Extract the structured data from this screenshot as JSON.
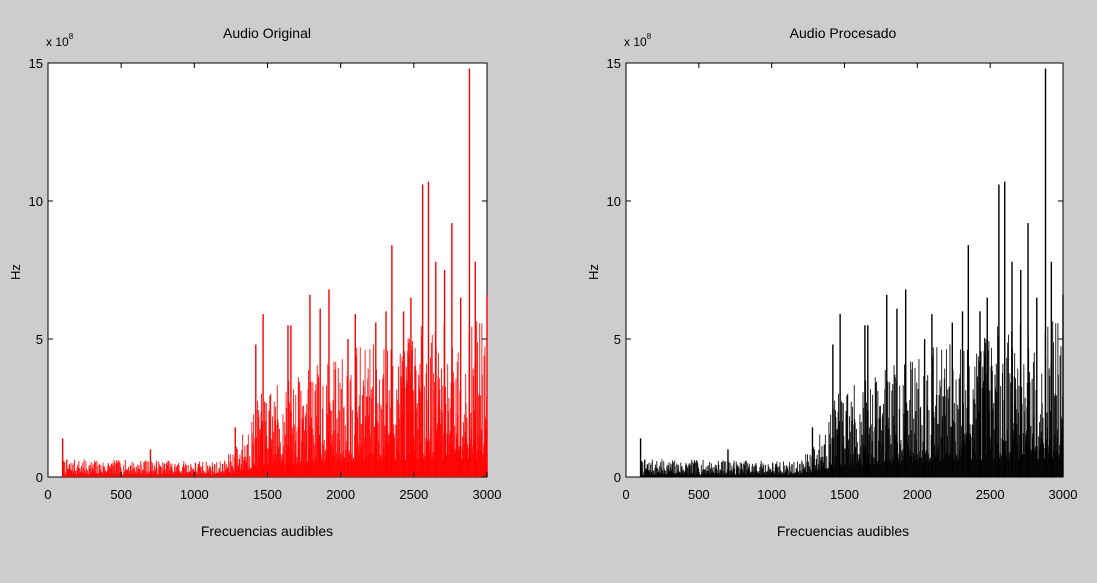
{
  "figure": {
    "background": "#cdcdcd"
  },
  "chart_data": [
    {
      "type": "bar",
      "title": "Audio Original",
      "xlabel": "Frecuencias audibles",
      "ylabel": "Hz",
      "exponent_label": "x 10",
      "exponent_power": "8",
      "xlim": [
        0,
        3000
      ],
      "ylim": [
        0,
        15
      ],
      "xticks": [
        "0",
        "500",
        "1000",
        "1500",
        "2000",
        "2500",
        "3000"
      ],
      "yticks": [
        "0",
        "5",
        "10",
        "15"
      ],
      "color": "#ff0000",
      "grid": false,
      "data_start": 100,
      "data_end": 3000,
      "noise_seed": 7,
      "envelope": [
        [
          100,
          0.5
        ],
        [
          1200,
          0.45
        ],
        [
          1300,
          1.0
        ],
        [
          1450,
          2.3
        ],
        [
          1750,
          3.0
        ],
        [
          2100,
          3.6
        ],
        [
          2500,
          4.2
        ],
        [
          3000,
          4.4
        ]
      ],
      "peaks": [
        {
          "x": 100,
          "y": 1.4
        },
        {
          "x": 700,
          "y": 1.0
        },
        {
          "x": 1280,
          "y": 1.8
        },
        {
          "x": 1420,
          "y": 4.8
        },
        {
          "x": 1470,
          "y": 5.9
        },
        {
          "x": 1640,
          "y": 5.5
        },
        {
          "x": 1660,
          "y": 5.5
        },
        {
          "x": 1790,
          "y": 6.6
        },
        {
          "x": 1860,
          "y": 6.1
        },
        {
          "x": 1920,
          "y": 6.8
        },
        {
          "x": 2050,
          "y": 5.0
        },
        {
          "x": 2100,
          "y": 5.9
        },
        {
          "x": 2240,
          "y": 5.6
        },
        {
          "x": 2310,
          "y": 6.0
        },
        {
          "x": 2350,
          "y": 8.4
        },
        {
          "x": 2430,
          "y": 6.0
        },
        {
          "x": 2480,
          "y": 6.5
        },
        {
          "x": 2560,
          "y": 10.6
        },
        {
          "x": 2600,
          "y": 10.7
        },
        {
          "x": 2650,
          "y": 7.8
        },
        {
          "x": 2710,
          "y": 7.5
        },
        {
          "x": 2760,
          "y": 9.2
        },
        {
          "x": 2820,
          "y": 6.5
        },
        {
          "x": 2880,
          "y": 14.8
        },
        {
          "x": 2920,
          "y": 7.8
        },
        {
          "x": 3000,
          "y": 6.6
        }
      ]
    },
    {
      "type": "bar",
      "title": "Audio Procesado",
      "xlabel": "Frecuencias audibles",
      "ylabel": "Hz",
      "exponent_label": "x 10",
      "exponent_power": "8",
      "xlim": [
        0,
        3000
      ],
      "ylim": [
        0,
        15
      ],
      "xticks": [
        "0",
        "500",
        "1000",
        "1500",
        "2000",
        "2500",
        "3000"
      ],
      "yticks": [
        "0",
        "5",
        "10",
        "15"
      ],
      "color": "#000000",
      "grid": false,
      "data_start": 100,
      "data_end": 3000,
      "noise_seed": 7,
      "envelope": [
        [
          100,
          0.5
        ],
        [
          1200,
          0.45
        ],
        [
          1300,
          1.0
        ],
        [
          1450,
          2.3
        ],
        [
          1750,
          3.0
        ],
        [
          2100,
          3.6
        ],
        [
          2500,
          4.2
        ],
        [
          3000,
          4.4
        ]
      ],
      "peaks": [
        {
          "x": 100,
          "y": 1.4
        },
        {
          "x": 700,
          "y": 1.0
        },
        {
          "x": 1280,
          "y": 1.8
        },
        {
          "x": 1420,
          "y": 4.8
        },
        {
          "x": 1470,
          "y": 5.9
        },
        {
          "x": 1640,
          "y": 5.5
        },
        {
          "x": 1660,
          "y": 5.5
        },
        {
          "x": 1790,
          "y": 6.6
        },
        {
          "x": 1860,
          "y": 6.1
        },
        {
          "x": 1920,
          "y": 6.8
        },
        {
          "x": 2050,
          "y": 5.0
        },
        {
          "x": 2100,
          "y": 5.9
        },
        {
          "x": 2240,
          "y": 5.6
        },
        {
          "x": 2310,
          "y": 6.0
        },
        {
          "x": 2350,
          "y": 8.4
        },
        {
          "x": 2430,
          "y": 6.0
        },
        {
          "x": 2480,
          "y": 6.5
        },
        {
          "x": 2560,
          "y": 10.6
        },
        {
          "x": 2600,
          "y": 10.7
        },
        {
          "x": 2650,
          "y": 7.8
        },
        {
          "x": 2710,
          "y": 7.5
        },
        {
          "x": 2760,
          "y": 9.2
        },
        {
          "x": 2820,
          "y": 6.5
        },
        {
          "x": 2880,
          "y": 14.8
        },
        {
          "x": 2920,
          "y": 7.8
        },
        {
          "x": 3000,
          "y": 6.6
        }
      ]
    }
  ]
}
